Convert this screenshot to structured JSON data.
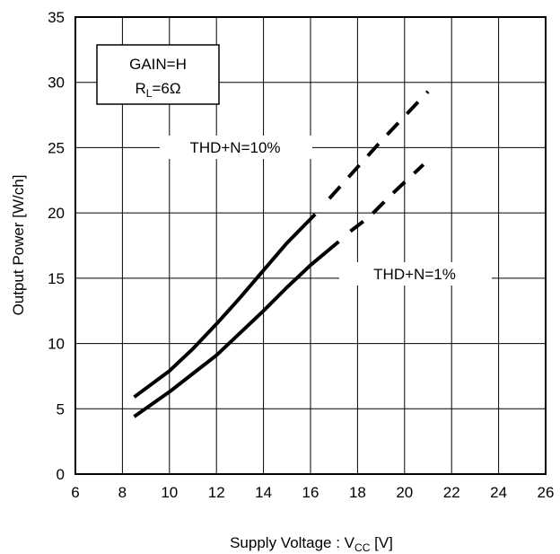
{
  "chart_data": {
    "type": "line",
    "xlabel_main": "Supply Voltage : V",
    "xlabel_sub": "CC",
    "xlabel_unit": " [V]",
    "ylabel": "Output Power [W/ch]",
    "xlim": [
      6,
      26
    ],
    "ylim": [
      0,
      35
    ],
    "x_ticks": [
      "6",
      "8",
      "10",
      "12",
      "14",
      "16",
      "18",
      "20",
      "22",
      "24",
      "26"
    ],
    "y_ticks": [
      "0",
      "5",
      "10",
      "15",
      "20",
      "25",
      "30",
      "35"
    ],
    "grid": true,
    "legend_box": {
      "line1": "GAIN=H",
      "line2_main": "R",
      "line2_sub": "L",
      "line2_rest": "=6Ω"
    },
    "series": [
      {
        "name": "THD+N=10%",
        "solid": [
          [
            8.5,
            5.9
          ],
          [
            10,
            7.9
          ],
          [
            11,
            9.6
          ],
          [
            12,
            11.5
          ],
          [
            13,
            13.5
          ],
          [
            14,
            15.6
          ],
          [
            15,
            17.7
          ],
          [
            16.2,
            19.9
          ]
        ],
        "dashed": [
          [
            16.8,
            21.1
          ],
          [
            18,
            23.5
          ],
          [
            19,
            25.5
          ],
          [
            20,
            27.4
          ],
          [
            21,
            29.3
          ]
        ]
      },
      {
        "name": "THD+N=1%",
        "solid": [
          [
            8.5,
            4.4
          ],
          [
            10,
            6.3
          ],
          [
            11,
            7.7
          ],
          [
            12,
            9.1
          ],
          [
            13,
            10.8
          ],
          [
            14,
            12.5
          ],
          [
            15,
            14.3
          ],
          [
            16,
            16.0
          ],
          [
            17.2,
            17.8
          ]
        ],
        "dashed": [
          [
            17.7,
            18.6
          ],
          [
            18.5,
            19.7
          ],
          [
            19.5,
            21.5
          ],
          [
            20.8,
            23.7
          ]
        ]
      }
    ]
  }
}
